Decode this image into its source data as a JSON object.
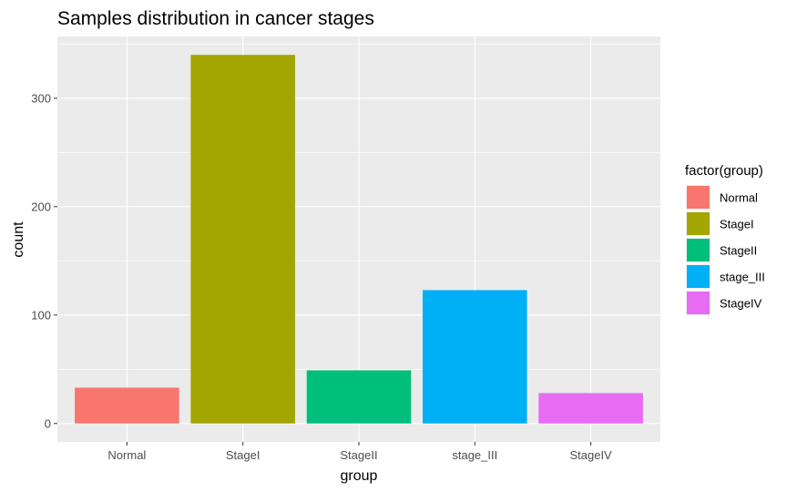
{
  "chart_data": {
    "type": "bar",
    "title": "Samples distribution in cancer stages",
    "xlabel": "group",
    "ylabel": "count",
    "categories": [
      "Normal",
      "StageI",
      "StageII",
      "stage_III",
      "StageIV"
    ],
    "values": [
      33,
      340,
      49,
      123,
      28
    ],
    "colors": [
      "#F8766D",
      "#A3A500",
      "#00BF7D",
      "#00B0F6",
      "#E76BF3"
    ],
    "ylim": [
      -17,
      357
    ],
    "yticks": [
      0,
      100,
      200,
      300
    ],
    "ytick_labels": [
      "0",
      "100",
      "200",
      "300"
    ],
    "grid": true,
    "legend": {
      "title": "factor(group)",
      "placement": "right",
      "entries": [
        "Normal",
        "StageI",
        "StageII",
        "stage_III",
        "StageIV"
      ]
    }
  }
}
